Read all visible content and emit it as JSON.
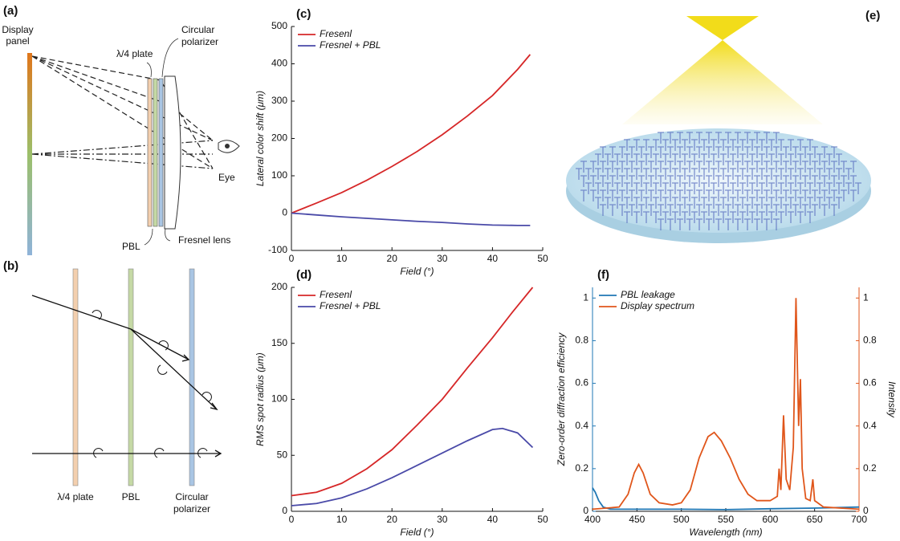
{
  "diagrams": {
    "a": {
      "label": "(a)",
      "display_panel": [
        "Display",
        "panel"
      ],
      "quarter_wave": "λ/4 plate",
      "circular_polarizer": [
        "Circular",
        "polarizer"
      ],
      "eye": "Eye",
      "pbl": "PBL",
      "fresnel": "Fresnel lens"
    },
    "b": {
      "label": "(b)",
      "quarter_wave": "λ/4 plate",
      "pbl": "PBL",
      "circular_polarizer": [
        "Circular",
        "polarizer"
      ]
    },
    "e": {
      "label": "(e)"
    }
  },
  "chart_data": [
    {
      "type": "line",
      "panel_label": "(c)",
      "xlabel": "Field (°)",
      "ylabel": "Lateral color shift (μm)",
      "xlim": [
        0,
        50
      ],
      "xticks": [
        0,
        10,
        20,
        30,
        40,
        50
      ],
      "ylim": [
        -100,
        500
      ],
      "yticks": [
        -100,
        0,
        100,
        200,
        300,
        400,
        500
      ],
      "legend": "upper left",
      "series": [
        {
          "name": "Fresenl",
          "color": "#d62728",
          "x": [
            0,
            5,
            10,
            15,
            20,
            25,
            30,
            35,
            40,
            45,
            47.5
          ],
          "values": [
            0,
            27,
            55,
            88,
            125,
            165,
            210,
            260,
            315,
            385,
            425
          ]
        },
        {
          "name": "Fresnel + PBL",
          "color": "#4a4aa8",
          "x": [
            0,
            5,
            10,
            15,
            20,
            25,
            30,
            35,
            40,
            45,
            47.5
          ],
          "values": [
            0,
            -5,
            -10,
            -14,
            -18,
            -22,
            -25,
            -29,
            -32,
            -33,
            -33
          ]
        }
      ]
    },
    {
      "type": "line",
      "panel_label": "(d)",
      "xlabel": "Field (°)",
      "ylabel": "RMS spot radius (μm)",
      "xlim": [
        0,
        50
      ],
      "xticks": [
        0,
        10,
        20,
        30,
        40,
        50
      ],
      "ylim": [
        0,
        200
      ],
      "yticks": [
        0,
        50,
        100,
        150,
        200
      ],
      "legend": "upper left",
      "series": [
        {
          "name": "Fresenl",
          "color": "#d62728",
          "x": [
            0,
            5,
            10,
            15,
            20,
            25,
            30,
            35,
            40,
            44,
            48
          ],
          "values": [
            14,
            17,
            25,
            38,
            55,
            77,
            100,
            128,
            155,
            178,
            200
          ]
        },
        {
          "name": "Fresnel + PBL",
          "color": "#4a4aa8",
          "x": [
            0,
            5,
            10,
            15,
            20,
            25,
            30,
            35,
            40,
            42,
            45,
            48
          ],
          "values": [
            5,
            7,
            12,
            20,
            30,
            41,
            52,
            63,
            73,
            74,
            70,
            57
          ]
        }
      ]
    },
    {
      "type": "line",
      "panel_label": "(f)",
      "xlabel": "Wavelength (nm)",
      "ylabel": "Zero-order diffraction efficiency",
      "y2label": "Intensity",
      "xlim": [
        400,
        700
      ],
      "xticks": [
        400,
        450,
        500,
        550,
        600,
        650,
        700
      ],
      "ylim": [
        0,
        1.05
      ],
      "yticks": [
        0,
        0.2,
        0.4,
        0.6,
        0.8,
        1
      ],
      "y2lim": [
        0,
        1.05
      ],
      "y2ticks": [
        0,
        0.2,
        0.4,
        0.6,
        0.8,
        1
      ],
      "y_color": "#1f77b4",
      "y2_color": "#e0561b",
      "legend": "upper left",
      "series": [
        {
          "name": "PBL leakage",
          "color": "#1f77b4",
          "x": [
            400,
            403,
            407,
            412,
            420,
            450,
            500,
            550,
            600,
            650,
            700
          ],
          "values": [
            0.11,
            0.09,
            0.05,
            0.02,
            0.01,
            0.01,
            0.01,
            0.008,
            0.012,
            0.015,
            0.02
          ]
        },
        {
          "name": "Display spectrum",
          "color": "#e0561b",
          "axis": "y2",
          "x": [
            400,
            430,
            440,
            447,
            452,
            457,
            465,
            475,
            490,
            500,
            510,
            520,
            530,
            537,
            545,
            555,
            565,
            575,
            585,
            600,
            608,
            610,
            612,
            615,
            618,
            622,
            626,
            629,
            632,
            634,
            636,
            640,
            645,
            648,
            650,
            660,
            700
          ],
          "values": [
            0.01,
            0.02,
            0.08,
            0.18,
            0.22,
            0.18,
            0.08,
            0.04,
            0.03,
            0.04,
            0.1,
            0.25,
            0.35,
            0.37,
            0.33,
            0.25,
            0.15,
            0.08,
            0.05,
            0.05,
            0.07,
            0.2,
            0.1,
            0.45,
            0.15,
            0.1,
            0.3,
            1,
            0.4,
            0.62,
            0.2,
            0.06,
            0.05,
            0.15,
            0.05,
            0.02,
            0.01
          ]
        }
      ]
    }
  ]
}
